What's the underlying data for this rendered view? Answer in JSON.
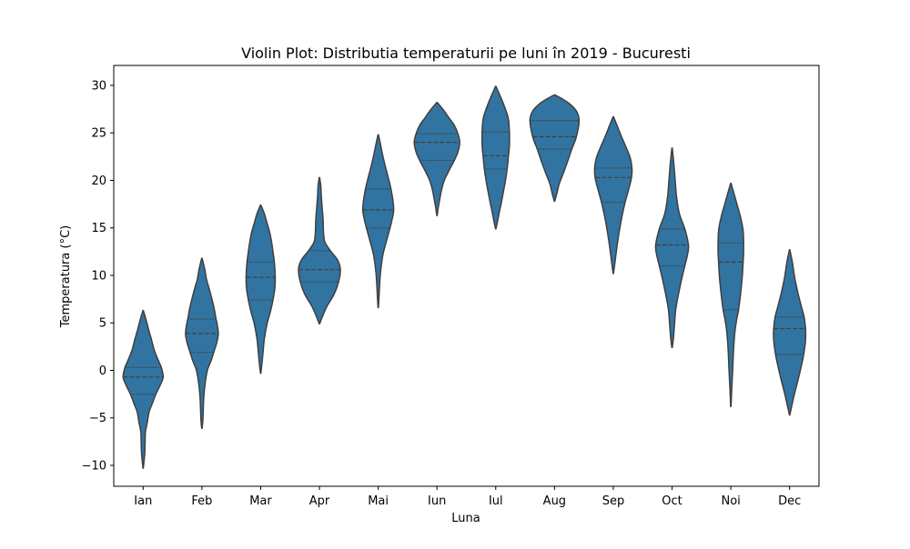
{
  "chart_data": {
    "type": "violin",
    "title": "Violin Plot: Distributia temperaturii pe luni în 2019 - Bucuresti",
    "xlabel": "Luna",
    "ylabel": "Temperatura (°C)",
    "ylim": [
      -12.2,
      32.1
    ],
    "yticks": [
      -10,
      -5,
      0,
      5,
      10,
      15,
      20,
      25,
      30
    ],
    "grid": false,
    "colors": {
      "violin_fill": "#3274a1",
      "violin_edge": "#3f3f3f",
      "quartile_line": "#3f3f3f"
    },
    "categories": [
      "Ian",
      "Feb",
      "Mar",
      "Apr",
      "Mai",
      "Iun",
      "Iul",
      "Aug",
      "Sep",
      "Oct",
      "Noi",
      "Dec"
    ],
    "violins": [
      {
        "label": "Ian",
        "quartiles": [
          -2.5,
          -0.7,
          0.3
        ],
        "profile": [
          [
            -10.3,
            0.2
          ],
          [
            -9.5,
            1.0
          ],
          [
            -8.7,
            1.8
          ],
          [
            -7.4,
            2.2
          ],
          [
            -6.5,
            2.5
          ],
          [
            -5.5,
            4.5
          ],
          [
            -4.4,
            6.5
          ],
          [
            -3.5,
            10.0
          ],
          [
            -2.5,
            14.0
          ],
          [
            -1.5,
            19.0
          ],
          [
            -0.7,
            22.0
          ],
          [
            0.3,
            20.0
          ],
          [
            1.2,
            16.0
          ],
          [
            2.2,
            12.0
          ],
          [
            3.3,
            9.0
          ],
          [
            4.3,
            6.0
          ],
          [
            5.4,
            3.0
          ],
          [
            6.3,
            0.2
          ]
        ]
      },
      {
        "label": "Feb",
        "quartiles": [
          1.9,
          3.9,
          5.4
        ],
        "profile": [
          [
            -6.1,
            0.2
          ],
          [
            -5.3,
            1.0
          ],
          [
            -4.1,
            1.5
          ],
          [
            -2.9,
            2.0
          ],
          [
            -1.4,
            3.5
          ],
          [
            0.0,
            6.0
          ],
          [
            1.0,
            10.0
          ],
          [
            1.9,
            13.0
          ],
          [
            3.0,
            16.5
          ],
          [
            3.9,
            18.0
          ],
          [
            5.0,
            16.5
          ],
          [
            5.4,
            15.5
          ],
          [
            6.5,
            13.5
          ],
          [
            7.5,
            11.0
          ],
          [
            8.6,
            8.0
          ],
          [
            9.6,
            5.0
          ],
          [
            10.7,
            3.0
          ],
          [
            11.8,
            0.2
          ]
        ]
      },
      {
        "label": "Mar",
        "quartiles": [
          7.4,
          9.8,
          11.4
        ],
        "profile": [
          [
            -0.3,
            0.2
          ],
          [
            0.8,
            1.5
          ],
          [
            1.8,
            2.5
          ],
          [
            3.3,
            4.0
          ],
          [
            4.9,
            7.0
          ],
          [
            6.3,
            11.0
          ],
          [
            7.4,
            13.5
          ],
          [
            8.6,
            15.5
          ],
          [
            9.8,
            16.0
          ],
          [
            11.4,
            15.0
          ],
          [
            12.5,
            13.5
          ],
          [
            13.5,
            12.0
          ],
          [
            14.5,
            10.0
          ],
          [
            15.5,
            7.0
          ],
          [
            16.5,
            4.0
          ],
          [
            17.4,
            0.2
          ]
        ]
      },
      {
        "label": "Apr",
        "quartiles": [
          9.3,
          10.6,
          12.6
        ],
        "profile": [
          [
            4.9,
            0.2
          ],
          [
            5.6,
            3.0
          ],
          [
            6.7,
            8.0
          ],
          [
            8.0,
            16.0
          ],
          [
            9.3,
            21.0
          ],
          [
            10.6,
            23.0
          ],
          [
            11.6,
            20.0
          ],
          [
            12.6,
            12.0
          ],
          [
            13.5,
            6.0
          ],
          [
            14.5,
            4.5
          ],
          [
            15.9,
            4.0
          ],
          [
            17.1,
            3.0
          ],
          [
            18.4,
            2.0
          ],
          [
            19.4,
            1.5
          ],
          [
            20.3,
            0.2
          ]
        ]
      },
      {
        "label": "Mai",
        "quartiles": [
          15.0,
          16.9,
          19.1
        ],
        "profile": [
          [
            6.6,
            0.2
          ],
          [
            7.6,
            0.8
          ],
          [
            8.9,
            1.5
          ],
          [
            10.3,
            2.5
          ],
          [
            12.1,
            5.0
          ],
          [
            13.6,
            9.0
          ],
          [
            15.0,
            13.0
          ],
          [
            16.0,
            15.5
          ],
          [
            16.9,
            17.0
          ],
          [
            18.0,
            16.0
          ],
          [
            19.1,
            14.0
          ],
          [
            20.3,
            11.0
          ],
          [
            21.4,
            8.0
          ],
          [
            22.6,
            5.0
          ],
          [
            23.8,
            2.5
          ],
          [
            24.8,
            0.2
          ]
        ]
      },
      {
        "label": "Iun",
        "quartiles": [
          22.1,
          24.0,
          24.9
        ],
        "profile": [
          [
            16.3,
            0.2
          ],
          [
            17.2,
            1.5
          ],
          [
            18.0,
            3.0
          ],
          [
            19.0,
            5.0
          ],
          [
            20.0,
            8.0
          ],
          [
            21.0,
            13.0
          ],
          [
            22.1,
            19.0
          ],
          [
            23.0,
            23.0
          ],
          [
            24.0,
            25.0
          ],
          [
            24.9,
            23.0
          ],
          [
            25.8,
            19.0
          ],
          [
            26.6,
            13.0
          ],
          [
            27.3,
            8.0
          ],
          [
            28.2,
            0.2
          ]
        ]
      },
      {
        "label": "Iul",
        "quartiles": [
          21.2,
          22.6,
          25.1
        ],
        "profile": [
          [
            14.9,
            0.2
          ],
          [
            15.7,
            2.0
          ],
          [
            16.7,
            4.0
          ],
          [
            17.6,
            6.0
          ],
          [
            18.6,
            8.0
          ],
          [
            19.9,
            10.5
          ],
          [
            21.2,
            12.5
          ],
          [
            22.6,
            14.0
          ],
          [
            23.7,
            15.0
          ],
          [
            25.1,
            15.0
          ],
          [
            26.4,
            14.0
          ],
          [
            27.4,
            11.0
          ],
          [
            28.4,
            7.0
          ],
          [
            29.3,
            3.0
          ],
          [
            29.9,
            0.2
          ]
        ]
      },
      {
        "label": "Aug",
        "quartiles": [
          23.3,
          24.6,
          26.3
        ],
        "profile": [
          [
            17.8,
            0.2
          ],
          [
            18.6,
            2.5
          ],
          [
            19.6,
            5.0
          ],
          [
            20.6,
            9.0
          ],
          [
            21.9,
            14.0
          ],
          [
            23.3,
            19.0
          ],
          [
            24.6,
            24.0
          ],
          [
            26.3,
            27.0
          ],
          [
            27.3,
            24.0
          ],
          [
            28.1,
            16.0
          ],
          [
            28.6,
            8.0
          ],
          [
            29.0,
            0.2
          ]
        ]
      },
      {
        "label": "Sep",
        "quartiles": [
          17.7,
          20.3,
          21.3
        ],
        "profile": [
          [
            10.2,
            0.2
          ],
          [
            11.5,
            2.0
          ],
          [
            13.0,
            4.0
          ],
          [
            14.6,
            6.5
          ],
          [
            16.2,
            9.5
          ],
          [
            17.7,
            13.0
          ],
          [
            19.1,
            17.0
          ],
          [
            20.3,
            20.0
          ],
          [
            21.3,
            20.5
          ],
          [
            22.4,
            18.5
          ],
          [
            23.5,
            14.0
          ],
          [
            24.6,
            9.0
          ],
          [
            25.8,
            4.0
          ],
          [
            26.7,
            0.2
          ]
        ]
      },
      {
        "label": "Oct",
        "quartiles": [
          11.0,
          13.2,
          14.9
        ],
        "profile": [
          [
            2.4,
            0.2
          ],
          [
            3.4,
            1.5
          ],
          [
            4.6,
            2.5
          ],
          [
            6.4,
            4.0
          ],
          [
            8.0,
            7.0
          ],
          [
            9.6,
            10.5
          ],
          [
            11.0,
            14.0
          ],
          [
            12.2,
            17.0
          ],
          [
            13.2,
            18.0
          ],
          [
            14.9,
            14.0
          ],
          [
            16.5,
            8.0
          ],
          [
            18.2,
            5.0
          ],
          [
            19.9,
            3.5
          ],
          [
            21.7,
            2.0
          ],
          [
            23.4,
            0.2
          ]
        ]
      },
      {
        "label": "Noi",
        "quartiles": [
          6.4,
          11.4,
          13.4
        ],
        "profile": [
          [
            -3.8,
            0.2
          ],
          [
            -1.9,
            1.0
          ],
          [
            0.0,
            2.0
          ],
          [
            2.2,
            3.0
          ],
          [
            4.1,
            4.5
          ],
          [
            5.4,
            6.5
          ],
          [
            6.4,
            8.5
          ],
          [
            7.9,
            10.5
          ],
          [
            9.8,
            12.5
          ],
          [
            11.4,
            13.5
          ],
          [
            12.4,
            14.0
          ],
          [
            13.4,
            14.0
          ],
          [
            14.7,
            13.5
          ],
          [
            16.0,
            11.0
          ],
          [
            17.4,
            7.0
          ],
          [
            18.6,
            3.5
          ],
          [
            19.7,
            0.2
          ]
        ]
      },
      {
        "label": "Dec",
        "quartiles": [
          1.7,
          4.4,
          5.6
        ],
        "profile": [
          [
            -4.7,
            0.2
          ],
          [
            -3.9,
            2.0
          ],
          [
            -2.6,
            5.0
          ],
          [
            -1.1,
            9.0
          ],
          [
            0.3,
            12.5
          ],
          [
            1.7,
            15.5
          ],
          [
            3.2,
            17.5
          ],
          [
            4.4,
            17.5
          ],
          [
            5.6,
            16.0
          ],
          [
            6.7,
            13.0
          ],
          [
            8.2,
            9.0
          ],
          [
            9.8,
            5.5
          ],
          [
            11.4,
            3.0
          ],
          [
            12.7,
            0.2
          ]
        ]
      }
    ]
  }
}
